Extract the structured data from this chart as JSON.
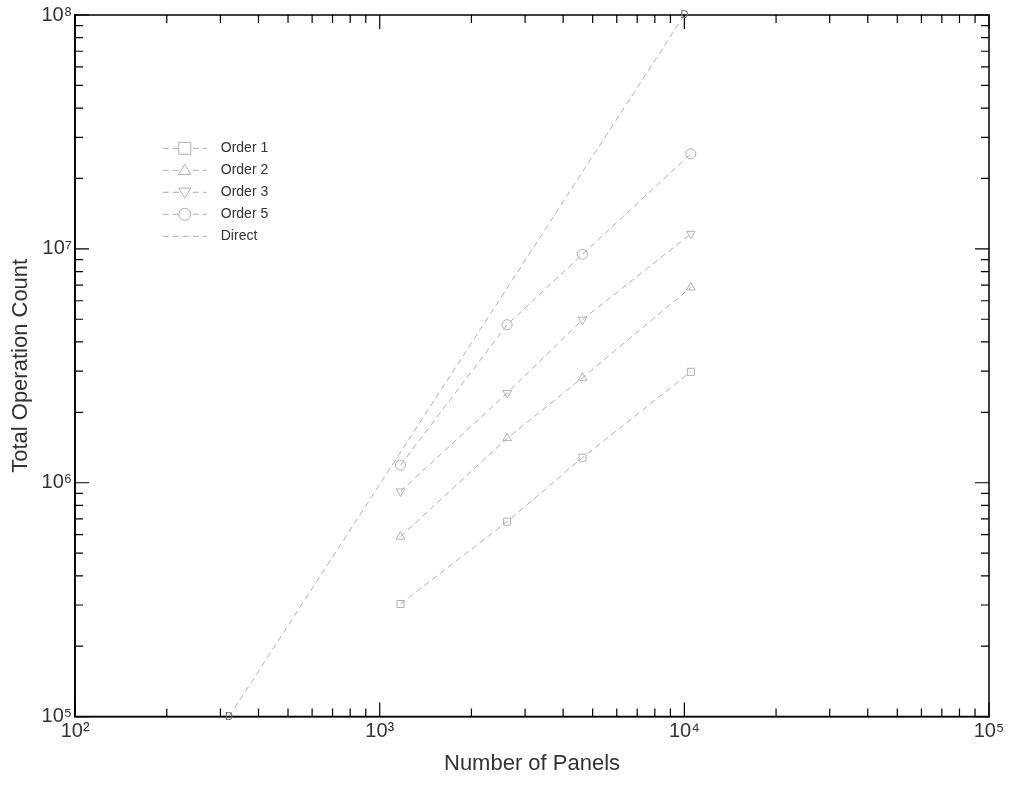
{
  "chart_data": {
    "type": "line",
    "xlabel": "Number of Panels",
    "ylabel": "Total Operation Count",
    "log": "xy",
    "grid": false,
    "legend": "top left",
    "line_style": "dashed",
    "xlim": [
      100,
      100000
    ],
    "ylim": [
      100000,
      100000000
    ],
    "xticks": [
      {
        "value": 100,
        "label": "10²"
      },
      {
        "value": 200,
        "label": null
      },
      {
        "value": 300,
        "label": null
      },
      {
        "value": 400,
        "label": null
      },
      {
        "value": 500,
        "label": null
      },
      {
        "value": 600,
        "label": null
      },
      {
        "value": 700,
        "label": null
      },
      {
        "value": 800,
        "label": null
      },
      {
        "value": 900,
        "label": null
      },
      {
        "value": 1000,
        "label": "10³"
      },
      {
        "value": 2000,
        "label": null
      },
      {
        "value": 3000,
        "label": null
      },
      {
        "value": 4000,
        "label": null
      },
      {
        "value": 5000,
        "label": null
      },
      {
        "value": 6000,
        "label": null
      },
      {
        "value": 7000,
        "label": null
      },
      {
        "value": 8000,
        "label": null
      },
      {
        "value": 9000,
        "label": null
      },
      {
        "value": 10000,
        "label": "10⁴"
      },
      {
        "value": 20000,
        "label": null
      },
      {
        "value": 30000,
        "label": null
      },
      {
        "value": 40000,
        "label": null
      },
      {
        "value": 50000,
        "label": null
      },
      {
        "value": 60000,
        "label": null
      },
      {
        "value": 70000,
        "label": null
      },
      {
        "value": 80000,
        "label": null
      },
      {
        "value": 90000,
        "label": null
      },
      {
        "value": 100000,
        "label": "10⁵"
      }
    ],
    "yticks": [
      {
        "value": 100000,
        "label": "10⁵"
      },
      {
        "value": 200000,
        "label": null
      },
      {
        "value": 300000,
        "label": null
      },
      {
        "value": 400000,
        "label": null
      },
      {
        "value": 500000,
        "label": null
      },
      {
        "value": 600000,
        "label": null
      },
      {
        "value": 700000,
        "label": null
      },
      {
        "value": 800000,
        "label": null
      },
      {
        "value": 900000,
        "label": null
      },
      {
        "value": 1000000,
        "label": "10⁶"
      },
      {
        "value": 2000000,
        "label": null
      },
      {
        "value": 3000000,
        "label": null
      },
      {
        "value": 4000000,
        "label": null
      },
      {
        "value": 5000000,
        "label": null
      },
      {
        "value": 6000000,
        "label": null
      },
      {
        "value": 7000000,
        "label": null
      },
      {
        "value": 8000000,
        "label": null
      },
      {
        "value": 9000000,
        "label": null
      },
      {
        "value": 10000000,
        "label": "10⁷"
      },
      {
        "value": 20000000,
        "label": null
      },
      {
        "value": 30000000,
        "label": null
      },
      {
        "value": 40000000,
        "label": null
      },
      {
        "value": 50000000,
        "label": null
      },
      {
        "value": 60000000,
        "label": null
      },
      {
        "value": 70000000,
        "label": null
      },
      {
        "value": 80000000,
        "label": null
      },
      {
        "value": 90000000,
        "label": null
      },
      {
        "value": 100000000,
        "label": "10⁸"
      }
    ],
    "series": [
      {
        "name": "Order 1",
        "color": "#b0b0b0",
        "marker": "square",
        "x": [
          1170,
          2620,
          4630,
          10500
        ],
        "values": [
          303000,
          682000,
          1280000,
          2980000
        ]
      },
      {
        "name": "Order 2",
        "color": "#b0b0b0",
        "marker": "triangle",
        "x": [
          1170,
          2620,
          4630,
          10500
        ],
        "values": [
          588000,
          1550000,
          2810000,
          6840000
        ]
      },
      {
        "name": "Order 3",
        "color": "#b0b0b0",
        "marker": "triangle-down",
        "x": [
          1170,
          2620,
          4630,
          10500
        ],
        "values": [
          918000,
          2420000,
          4980000,
          11600000
        ]
      },
      {
        "name": "Order 5",
        "color": "#b0b0b0",
        "marker": "circle",
        "x": [
          1170,
          2620,
          4630,
          10500
        ],
        "values": [
          1190000,
          4740000,
          9480000,
          25500000
        ]
      },
      {
        "name": "Direct",
        "color": "#b0b0b0",
        "marker": "none",
        "x": [
          320,
          10000
        ],
        "values": [
          100000,
          100000000
        ]
      }
    ],
    "annotations": [
      {
        "text": "D",
        "x": 320,
        "y": 100000
      },
      {
        "text": "D",
        "x": 10000,
        "y": 100000000
      }
    ]
  }
}
